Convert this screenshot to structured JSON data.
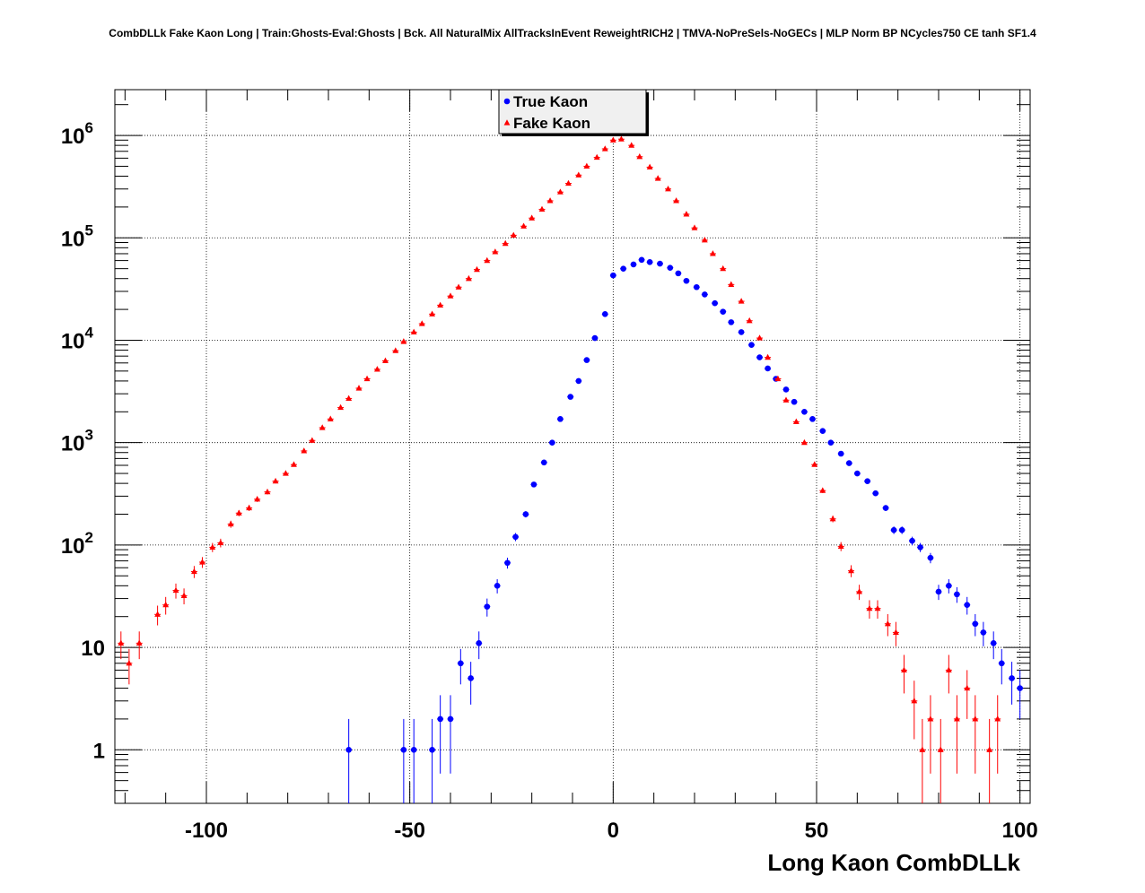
{
  "chart_data": {
    "type": "scatter",
    "title": "CombDLLk Fake Kaon Long | Train:Ghosts-Eval:Ghosts | Bck. All NaturalMix AllTracksInEvent ReweightRICH2 | TMVA-NoPreSels-NoGECs | MLP Norm BP NCycles750 CE tanh SF1.4",
    "xlabel": "Long Kaon CombDLLk",
    "ylabel": "",
    "xlim": [
      -122.5,
      102.5
    ],
    "ylim": [
      0.3,
      2800000
    ],
    "yscale": "log",
    "grid": true,
    "legend_position": "top-center",
    "x_ticks": [
      {
        "value": -100,
        "label": "-100"
      },
      {
        "value": -50,
        "label": "-50"
      },
      {
        "value": 0,
        "label": "0"
      },
      {
        "value": 50,
        "label": "50"
      },
      {
        "value": 100,
        "label": "100"
      }
    ],
    "y_ticks": [
      {
        "value": 1,
        "base": "1",
        "exp": ""
      },
      {
        "value": 10,
        "base": "10",
        "exp": ""
      },
      {
        "value": 100,
        "base": "10",
        "exp": "2"
      },
      {
        "value": 1000,
        "base": "10",
        "exp": "3"
      },
      {
        "value": 10000,
        "base": "10",
        "exp": "4"
      },
      {
        "value": 100000,
        "base": "10",
        "exp": "5"
      },
      {
        "value": 1000000,
        "base": "10",
        "exp": "6"
      }
    ],
    "series": [
      {
        "name": "True Kaon",
        "color": "#0000ff",
        "marker": "circle",
        "points": [
          [
            -65,
            1
          ],
          [
            -51.5,
            1
          ],
          [
            -49,
            1
          ],
          [
            -44.5,
            1
          ],
          [
            -42.5,
            2
          ],
          [
            -40,
            2
          ],
          [
            -37.5,
            7
          ],
          [
            -35,
            5
          ],
          [
            -33,
            11
          ],
          [
            -31,
            25
          ],
          [
            -28.5,
            40
          ],
          [
            -26,
            67
          ],
          [
            -24,
            120
          ],
          [
            -21.5,
            200
          ],
          [
            -19.5,
            390
          ],
          [
            -17,
            640
          ],
          [
            -15,
            1000
          ],
          [
            -13,
            1700
          ],
          [
            -10.5,
            2800
          ],
          [
            -8.5,
            4000
          ],
          [
            -6.5,
            6400
          ],
          [
            -4.5,
            10500
          ],
          [
            -2,
            18000
          ],
          [
            0,
            43000
          ],
          [
            2.5,
            50000
          ],
          [
            5,
            55000
          ],
          [
            7,
            61000
          ],
          [
            9,
            58000
          ],
          [
            11.5,
            56000
          ],
          [
            14,
            51000
          ],
          [
            16,
            45000
          ],
          [
            18,
            38000
          ],
          [
            20.5,
            33000
          ],
          [
            22.5,
            28000
          ],
          [
            25,
            23000
          ],
          [
            27,
            19000
          ],
          [
            29,
            15000
          ],
          [
            31.5,
            12000
          ],
          [
            34,
            9000
          ],
          [
            36,
            6800
          ],
          [
            38,
            5300
          ],
          [
            40,
            4200
          ],
          [
            42.5,
            3300
          ],
          [
            44.5,
            2500
          ],
          [
            47,
            2000
          ],
          [
            49,
            1700
          ],
          [
            51.5,
            1300
          ],
          [
            53.5,
            1000
          ],
          [
            56,
            780
          ],
          [
            58,
            630
          ],
          [
            60,
            500
          ],
          [
            62.5,
            420
          ],
          [
            64.5,
            320
          ],
          [
            67,
            230
          ],
          [
            69,
            140
          ],
          [
            71,
            140
          ],
          [
            73.5,
            110
          ],
          [
            75.5,
            95
          ],
          [
            78,
            75
          ],
          [
            80,
            35
          ],
          [
            82.5,
            40
          ],
          [
            84.5,
            33
          ],
          [
            87,
            26
          ],
          [
            89,
            17
          ],
          [
            91,
            14
          ],
          [
            93.5,
            11
          ],
          [
            95.5,
            7
          ],
          [
            98,
            5
          ],
          [
            100,
            4
          ]
        ]
      },
      {
        "name": "Fake Kaon",
        "color": "#ff0000",
        "marker": "triangle",
        "points": [
          [
            -121,
            11
          ],
          [
            -119,
            7
          ],
          [
            -116.5,
            11
          ],
          [
            -112,
            21
          ],
          [
            -110,
            26
          ],
          [
            -107.5,
            36
          ],
          [
            -105.5,
            32
          ],
          [
            -103,
            55
          ],
          [
            -101,
            68
          ],
          [
            -98.5,
            95
          ],
          [
            -96.5,
            105
          ],
          [
            -94,
            160
          ],
          [
            -92,
            205
          ],
          [
            -89.5,
            230
          ],
          [
            -87.5,
            280
          ],
          [
            -85,
            330
          ],
          [
            -83,
            420
          ],
          [
            -80.5,
            500
          ],
          [
            -78.5,
            610
          ],
          [
            -76,
            830
          ],
          [
            -74,
            1050
          ],
          [
            -71.5,
            1400
          ],
          [
            -69.5,
            1700
          ],
          [
            -67,
            2200
          ],
          [
            -65,
            2700
          ],
          [
            -62.5,
            3400
          ],
          [
            -60.5,
            4200
          ],
          [
            -58,
            5200
          ],
          [
            -56,
            6300
          ],
          [
            -53.5,
            7900
          ],
          [
            -51.5,
            9700
          ],
          [
            -49,
            12000
          ],
          [
            -47,
            14500
          ],
          [
            -44.5,
            18000
          ],
          [
            -42.5,
            22000
          ],
          [
            -40,
            27000
          ],
          [
            -38,
            33000
          ],
          [
            -35.5,
            40000
          ],
          [
            -33.5,
            49000
          ],
          [
            -31,
            60000
          ],
          [
            -29,
            73000
          ],
          [
            -26.5,
            88000
          ],
          [
            -24.5,
            106000
          ],
          [
            -22,
            130000
          ],
          [
            -20,
            156000
          ],
          [
            -17.5,
            190000
          ],
          [
            -15.5,
            230000
          ],
          [
            -13,
            280000
          ],
          [
            -11,
            340000
          ],
          [
            -8.5,
            410000
          ],
          [
            -6.5,
            500000
          ],
          [
            -4,
            610000
          ],
          [
            -2,
            740000
          ],
          [
            0,
            900000
          ],
          [
            2,
            920000
          ],
          [
            4.5,
            800000
          ],
          [
            6.5,
            620000
          ],
          [
            9,
            490000
          ],
          [
            11,
            380000
          ],
          [
            13.5,
            300000
          ],
          [
            15.5,
            230000
          ],
          [
            18,
            170000
          ],
          [
            20,
            125000
          ],
          [
            22.5,
            95000
          ],
          [
            24.5,
            70000
          ],
          [
            27,
            50000
          ],
          [
            29,
            35000
          ],
          [
            31.5,
            24000
          ],
          [
            33.5,
            15500
          ],
          [
            36,
            10500
          ],
          [
            38,
            6800
          ],
          [
            40.5,
            4200
          ],
          [
            42.5,
            2600
          ],
          [
            45,
            1600
          ],
          [
            47,
            1000
          ],
          [
            49.5,
            610
          ],
          [
            51.5,
            340
          ],
          [
            54,
            180
          ],
          [
            56,
            97
          ],
          [
            58.5,
            56
          ],
          [
            60.5,
            35
          ],
          [
            63,
            24
          ],
          [
            65,
            24
          ],
          [
            67.5,
            17
          ],
          [
            69.5,
            14
          ],
          [
            71.5,
            6
          ],
          [
            74,
            3
          ],
          [
            76,
            1
          ],
          [
            78,
            2
          ],
          [
            80.5,
            1
          ],
          [
            82.5,
            6
          ],
          [
            84.5,
            2
          ],
          [
            87,
            4
          ],
          [
            89,
            2
          ],
          [
            92.5,
            1
          ],
          [
            94.5,
            2
          ]
        ]
      }
    ]
  }
}
